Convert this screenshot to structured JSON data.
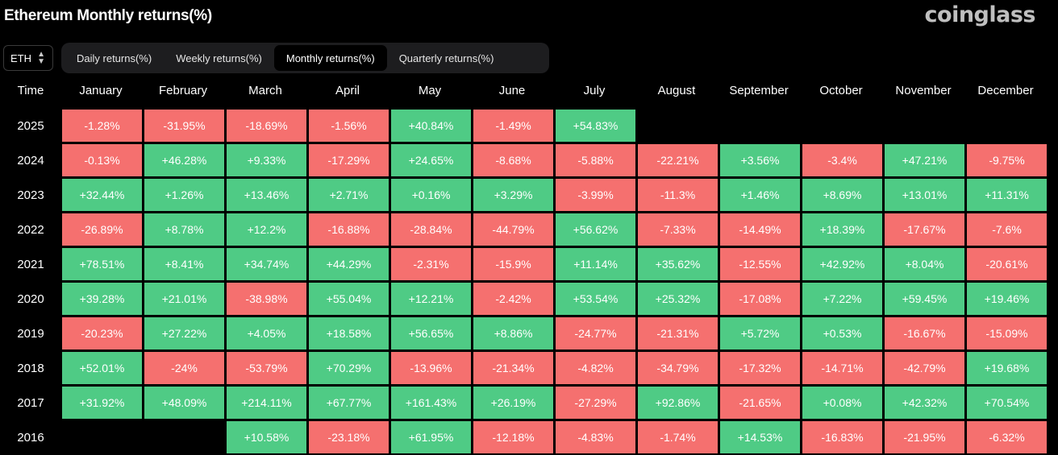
{
  "header": {
    "title": "Ethereum Monthly returns(%)",
    "logo": "coinglass"
  },
  "controls": {
    "coin": "ETH",
    "tabs": [
      {
        "label": "Daily returns(%)",
        "active": false
      },
      {
        "label": "Weekly returns(%)",
        "active": false
      },
      {
        "label": "Monthly returns(%)",
        "active": true
      },
      {
        "label": "Quarterly returns(%)",
        "active": false
      }
    ]
  },
  "colors": {
    "positive": "#4fcb85",
    "negative": "#f5706f"
  },
  "chart_data": {
    "type": "heatmap",
    "row_header": "Time",
    "columns": [
      "January",
      "February",
      "March",
      "April",
      "May",
      "June",
      "July",
      "August",
      "September",
      "October",
      "November",
      "December"
    ],
    "rows": [
      {
        "year": "2025",
        "values": [
          "-1.28%",
          "-31.95%",
          "-18.69%",
          "-1.56%",
          "+40.84%",
          "-1.49%",
          "+54.83%",
          null,
          null,
          null,
          null,
          null
        ]
      },
      {
        "year": "2024",
        "values": [
          "-0.13%",
          "+46.28%",
          "+9.33%",
          "-17.29%",
          "+24.65%",
          "-8.68%",
          "-5.88%",
          "-22.21%",
          "+3.56%",
          "-3.4%",
          "+47.21%",
          "-9.75%"
        ]
      },
      {
        "year": "2023",
        "values": [
          "+32.44%",
          "+1.26%",
          "+13.46%",
          "+2.71%",
          "+0.16%",
          "+3.29%",
          "-3.99%",
          "-11.3%",
          "+1.46%",
          "+8.69%",
          "+13.01%",
          "+11.31%"
        ]
      },
      {
        "year": "2022",
        "values": [
          "-26.89%",
          "+8.78%",
          "+12.2%",
          "-16.88%",
          "-28.84%",
          "-44.79%",
          "+56.62%",
          "-7.33%",
          "-14.49%",
          "+18.39%",
          "-17.67%",
          "-7.6%"
        ]
      },
      {
        "year": "2021",
        "values": [
          "+78.51%",
          "+8.41%",
          "+34.74%",
          "+44.29%",
          "-2.31%",
          "-15.9%",
          "+11.14%",
          "+35.62%",
          "-12.55%",
          "+42.92%",
          "+8.04%",
          "-20.61%"
        ]
      },
      {
        "year": "2020",
        "values": [
          "+39.28%",
          "+21.01%",
          "-38.98%",
          "+55.04%",
          "+12.21%",
          "-2.42%",
          "+53.54%",
          "+25.32%",
          "-17.08%",
          "+7.22%",
          "+59.45%",
          "+19.46%"
        ]
      },
      {
        "year": "2019",
        "values": [
          "-20.23%",
          "+27.22%",
          "+4.05%",
          "+18.58%",
          "+56.65%",
          "+8.86%",
          "-24.77%",
          "-21.31%",
          "+5.72%",
          "+0.53%",
          "-16.67%",
          "-15.09%"
        ]
      },
      {
        "year": "2018",
        "values": [
          "+52.01%",
          "-24%",
          "-53.79%",
          "+70.29%",
          "-13.96%",
          "-21.34%",
          "-4.82%",
          "-34.79%",
          "-17.32%",
          "-14.71%",
          "-42.79%",
          "+19.68%"
        ]
      },
      {
        "year": "2017",
        "values": [
          "+31.92%",
          "+48.09%",
          "+214.11%",
          "+67.77%",
          "+161.43%",
          "+26.19%",
          "-27.29%",
          "+92.86%",
          "-21.65%",
          "+0.08%",
          "+42.32%",
          "+70.54%"
        ]
      },
      {
        "year": "2016",
        "values": [
          null,
          null,
          "+10.58%",
          "-23.18%",
          "+61.95%",
          "-12.18%",
          "-4.83%",
          "-1.74%",
          "+14.53%",
          "-16.83%",
          "-21.95%",
          "-6.32%"
        ]
      }
    ]
  }
}
